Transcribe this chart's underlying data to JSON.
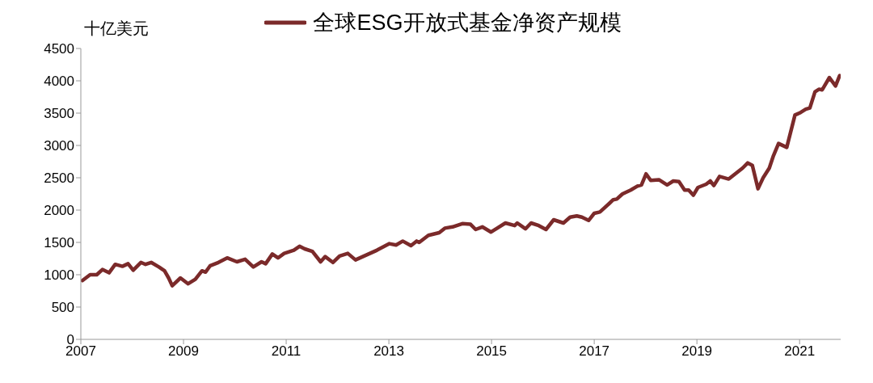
{
  "chart_data": {
    "type": "line",
    "ylabel": "十亿美元",
    "xlim": [
      2007,
      2021.8
    ],
    "xticks": [
      2007,
      2009,
      2011,
      2013,
      2015,
      2017,
      2019,
      2021
    ],
    "ylim": [
      0,
      4500
    ],
    "yticks": [
      0,
      500,
      1000,
      1500,
      2000,
      2500,
      3000,
      3500,
      4000,
      4500
    ],
    "grid": false,
    "legend": "top",
    "marker": "none",
    "line_style": "solid",
    "x": [
      2007.03,
      2007.18,
      2007.31,
      2007.42,
      2007.55,
      2007.67,
      2007.81,
      2007.92,
      2008.02,
      2008.17,
      2008.26,
      2008.37,
      2008.52,
      2008.63,
      2008.71,
      2008.78,
      2008.94,
      2009.09,
      2009.23,
      2009.36,
      2009.43,
      2009.52,
      2009.68,
      2009.85,
      2010.04,
      2010.2,
      2010.36,
      2010.52,
      2010.6,
      2010.73,
      2010.84,
      2010.96,
      2011.15,
      2011.26,
      2011.36,
      2011.51,
      2011.67,
      2011.76,
      2011.91,
      2012.04,
      2012.2,
      2012.35,
      2012.49,
      2012.77,
      2013.01,
      2013.14,
      2013.27,
      2013.43,
      2013.54,
      2013.59,
      2013.77,
      2013.98,
      2014.09,
      2014.24,
      2014.43,
      2014.59,
      2014.69,
      2014.82,
      2014.99,
      2015.11,
      2015.27,
      2015.45,
      2015.5,
      2015.66,
      2015.77,
      2015.92,
      2016.06,
      2016.21,
      2016.4,
      2016.53,
      2016.66,
      2016.76,
      2016.89,
      2017,
      2017.11,
      2017.29,
      2017.37,
      2017.44,
      2017.55,
      2017.71,
      2017.84,
      2017.92,
      2018.01,
      2018.1,
      2018.26,
      2018.42,
      2018.54,
      2018.65,
      2018.76,
      2018.84,
      2018.93,
      2019.02,
      2019.18,
      2019.26,
      2019.33,
      2019.44,
      2019.62,
      2019.78,
      2019.89,
      2019.99,
      2020.08,
      2020.19,
      2020.29,
      2020.41,
      2020.49,
      2020.59,
      2020.75,
      2020.91,
      2021.02,
      2021.12,
      2021.2,
      2021.3,
      2021.38,
      2021.44,
      2021.58,
      2021.7,
      2021.78
    ],
    "series": [
      {
        "name": "全球ESG开放式基金净资产规模",
        "color": "#7b2a2a",
        "values": [
          910,
          1000,
          1000,
          1080,
          1030,
          1160,
          1130,
          1170,
          1070,
          1190,
          1160,
          1190,
          1120,
          1060,
          950,
          830,
          950,
          860,
          930,
          1060,
          1040,
          1140,
          1190,
          1260,
          1200,
          1240,
          1120,
          1200,
          1170,
          1320,
          1260,
          1330,
          1380,
          1440,
          1400,
          1360,
          1200,
          1280,
          1190,
          1290,
          1330,
          1230,
          1280,
          1380,
          1480,
          1460,
          1520,
          1450,
          1520,
          1500,
          1610,
          1650,
          1720,
          1740,
          1790,
          1780,
          1700,
          1740,
          1660,
          1720,
          1800,
          1760,
          1800,
          1710,
          1800,
          1760,
          1700,
          1850,
          1800,
          1890,
          1910,
          1890,
          1840,
          1950,
          1970,
          2100,
          2160,
          2170,
          2250,
          2310,
          2370,
          2390,
          2560,
          2460,
          2470,
          2390,
          2450,
          2440,
          2310,
          2310,
          2230,
          2350,
          2400,
          2450,
          2380,
          2520,
          2480,
          2580,
          2650,
          2730,
          2690,
          2330,
          2500,
          2650,
          2840,
          3030,
          2970,
          3470,
          3510,
          3560,
          3580,
          3830,
          3870,
          3860,
          4050,
          3920,
          4080
        ]
      }
    ]
  }
}
